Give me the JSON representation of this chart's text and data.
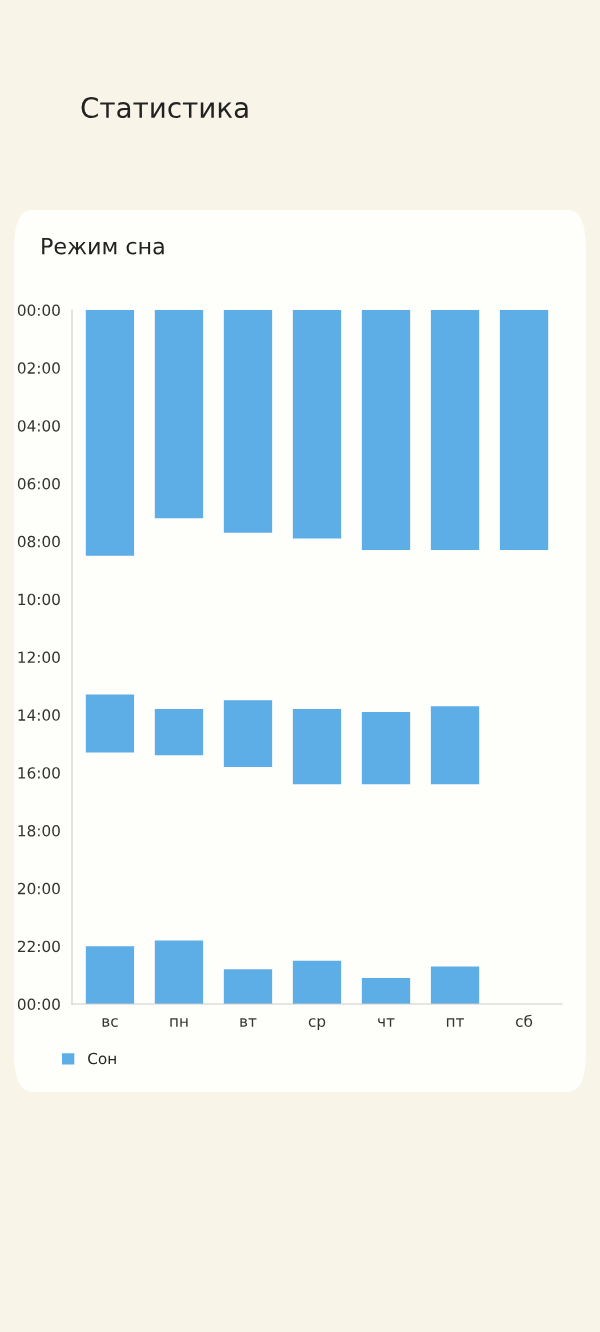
{
  "chart_data": {
    "type": "bar",
    "title": "Режим сна",
    "annotations": [
      "Статистика"
    ],
    "categories": [
      "вс",
      "пн",
      "вт",
      "ср",
      "чт",
      "пт",
      "сб"
    ],
    "series": [
      {
        "name": "Сон",
        "color": "#5dade6",
        "base": [
          0,
          0,
          0,
          0,
          0,
          0,
          0
        ],
        "values": [
          8.5,
          7.2,
          7.7,
          7.9,
          8.3,
          8.3,
          8.3
        ]
      },
      {
        "color": "#5dade6",
        "base": [
          13.3,
          13.8,
          13.5,
          13.8,
          13.9,
          13.7,
          null
        ],
        "values": [
          2.0,
          1.6,
          2.3,
          2.6,
          2.5,
          2.7,
          null
        ]
      },
      {
        "color": "#5dade6",
        "base": [
          22.0,
          21.8,
          22.8,
          22.5,
          23.1,
          22.7,
          null
        ],
        "values": [
          2.0,
          2.2,
          1.2,
          1.5,
          0.9,
          1.3,
          null
        ]
      }
    ],
    "ylim": [
      24,
      0
    ],
    "yticks": [
      {
        "value": 0,
        "label": "00:00"
      },
      {
        "value": 2,
        "label": "02:00"
      },
      {
        "value": 4,
        "label": "04:00"
      },
      {
        "value": 6,
        "label": "06:00"
      },
      {
        "value": 8,
        "label": "08:00"
      },
      {
        "value": 10,
        "label": "10:00"
      },
      {
        "value": 12,
        "label": "12:00"
      },
      {
        "value": 14,
        "label": "14:00"
      },
      {
        "value": 16,
        "label": "16:00"
      },
      {
        "value": 18,
        "label": "18:00"
      },
      {
        "value": 20,
        "label": "20:00"
      },
      {
        "value": 22,
        "label": "22:00"
      },
      {
        "value": 24,
        "label": "00:00"
      }
    ],
    "grid": false,
    "legend": "bottom left"
  }
}
